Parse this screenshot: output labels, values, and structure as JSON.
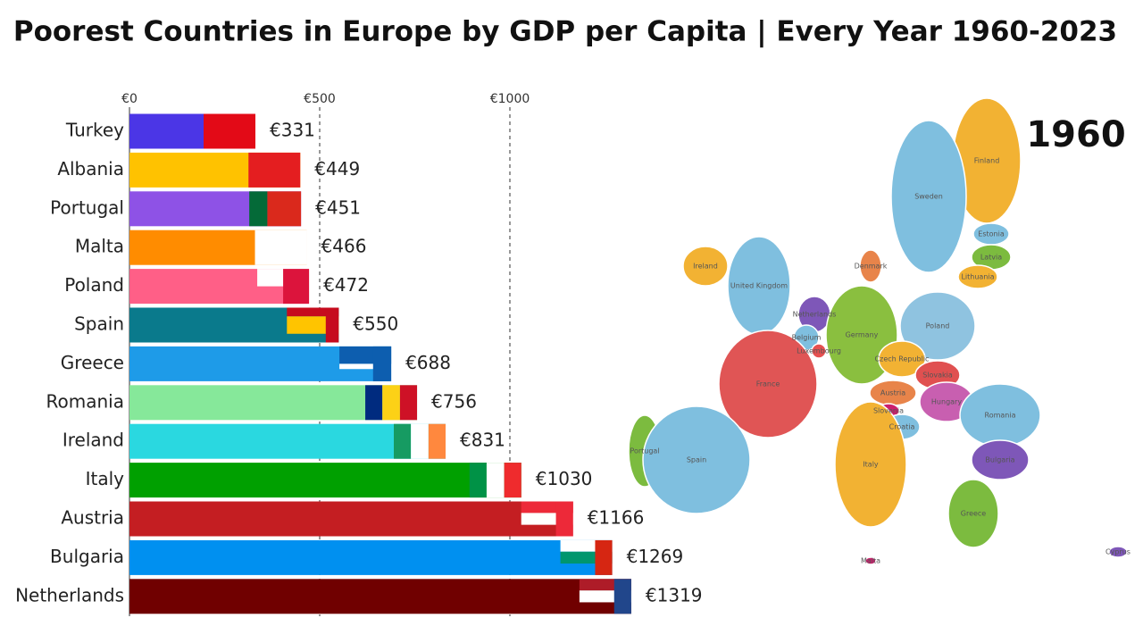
{
  "chart_data": {
    "type": "bar",
    "orientation": "horizontal",
    "title": "Poorest Countries in Europe by GDP per Capita | Every Year 1960-2023",
    "year": "1960",
    "categories": [
      "Turkey",
      "Albania",
      "Portugal",
      "Malta",
      "Poland",
      "Spain",
      "Greece",
      "Romania",
      "Ireland",
      "Italy",
      "Austria",
      "Bulgaria",
      "Netherlands"
    ],
    "values": [
      331,
      449,
      451,
      466,
      472,
      550,
      688,
      756,
      831,
      1030,
      1166,
      1269,
      1319
    ],
    "value_labels": [
      "€331",
      "€449",
      "€451",
      "€466",
      "€472",
      "€550",
      "€688",
      "€756",
      "€831",
      "€1030",
      "€1166",
      "€1269",
      "€1319"
    ],
    "colors": [
      "#4b36e6",
      "#ffc200",
      "#8e52e6",
      "#ff8c00",
      "#ff5f87",
      "#0a7a8c",
      "#1e9be8",
      "#86e89a",
      "#2ad8e0",
      "#00a000",
      "#c41e22",
      "#0090f0",
      "#700000"
    ],
    "xlim": [
      0,
      1500
    ],
    "xticks": [
      {
        "value": 0,
        "label": "€0"
      },
      {
        "value": 500,
        "label": "€500"
      },
      {
        "value": 1000,
        "label": "€1000"
      }
    ],
    "grid": true,
    "map_labels": [
      "Finland",
      "Sweden",
      "Estonia",
      "Latvia",
      "Lithuania",
      "Ireland",
      "Denmark",
      "United Kingdom",
      "Netherlands",
      "Belgium",
      "Luxembourg",
      "Germany",
      "Poland",
      "Czech Republic",
      "Slovakia",
      "Austria",
      "Hungary",
      "France",
      "Slovenia",
      "Croatia",
      "Romania",
      "Portugal",
      "Spain",
      "Italy",
      "Bulgaria",
      "Greece",
      "Malta",
      "Cyprus"
    ]
  }
}
